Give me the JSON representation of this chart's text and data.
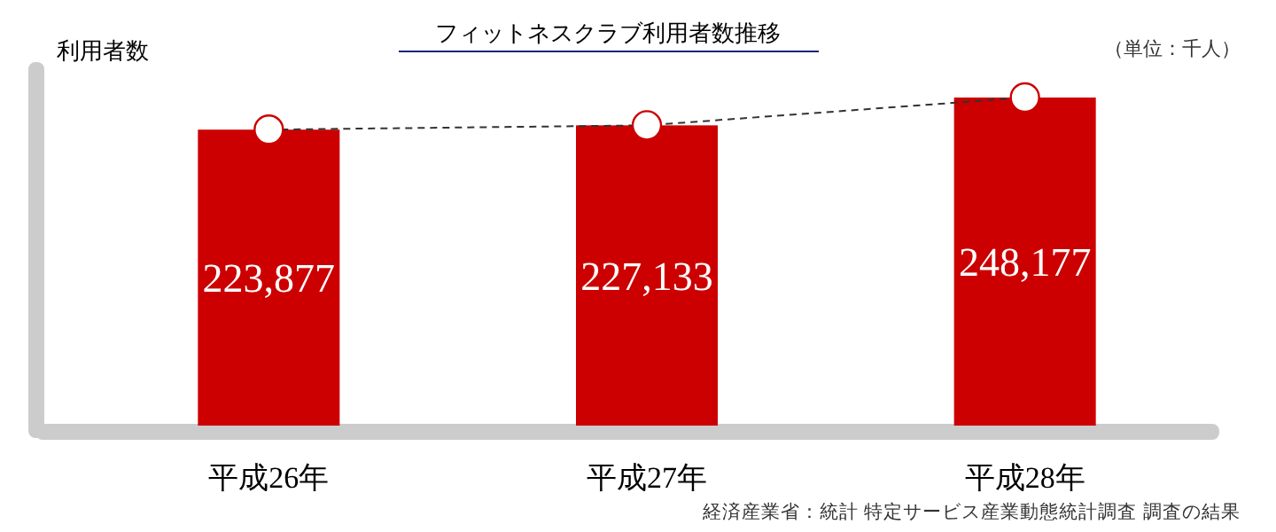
{
  "chart_data": {
    "type": "bar",
    "title": "フィットネスクラブ利用者数推移",
    "ylabel": "利用者数",
    "annotations": [
      "（単位：千人）",
      "経済産業省：統計 特定サービス産業動態統計調査 調査の結果"
    ],
    "categories": [
      "平成26年",
      "平成27年",
      "平成28年"
    ],
    "series": [
      {
        "color": "#cc0000",
        "values": [
          223877,
          227133,
          248177
        ],
        "value_labels": [
          "223,877",
          "227,133",
          "248,177"
        ]
      },
      {
        "type": "line",
        "color": "#333333",
        "values": [
          223877,
          227133,
          248177
        ]
      }
    ],
    "marker": "circle",
    "line_style": "dashed"
  }
}
